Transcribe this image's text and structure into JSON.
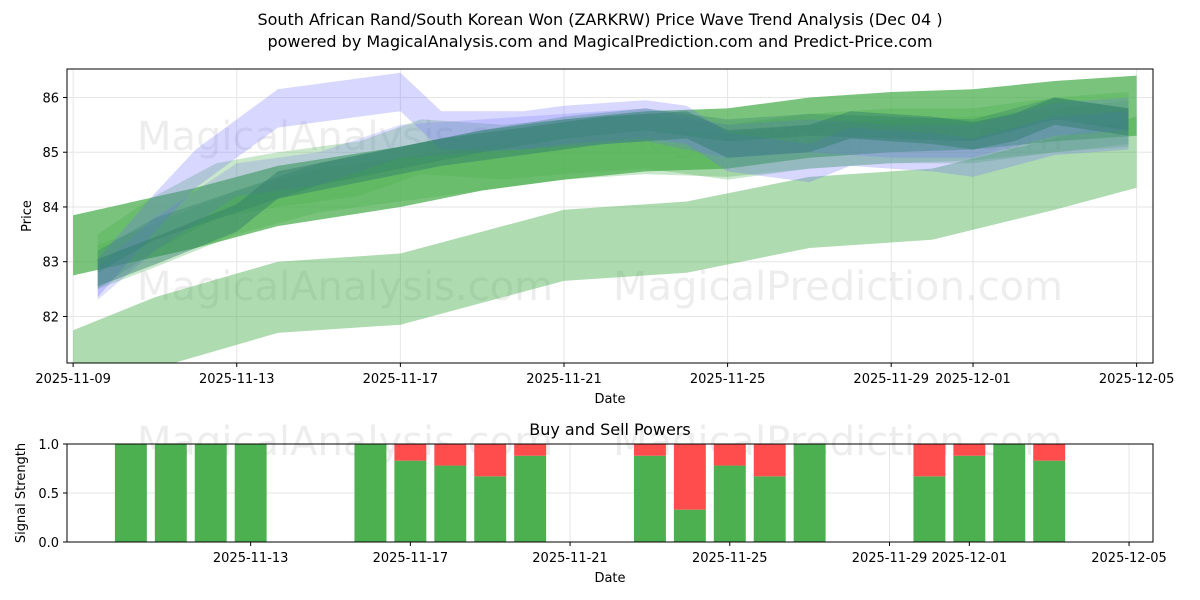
{
  "title_line1": "South African Rand/South Korean Won (ZARKRW) Price Wave Trend Analysis (Dec 04 )",
  "title_line2": "powered by MagicalAnalysis.com and MagicalPrediction.com and Predict-Price.com",
  "watermarks": [
    "MagicalAnalysis.com",
    "MagicalPrediction.com"
  ],
  "colors": {
    "green": "#4caf50",
    "blue": "#6f6fff",
    "red": "#ff4d4d",
    "teal": "#2e7d6a"
  },
  "chart_data": [
    {
      "type": "area",
      "title": "",
      "xlabel": "Date",
      "ylabel": "Price",
      "xlim_days": [
        -0.15,
        26.4
      ],
      "ylim": [
        81.15,
        86.52
      ],
      "x_ticks": [
        {
          "day": 0,
          "label": "2025-11-09"
        },
        {
          "day": 4,
          "label": "2025-11-13"
        },
        {
          "day": 8,
          "label": "2025-11-17"
        },
        {
          "day": 12,
          "label": "2025-11-21"
        },
        {
          "day": 16,
          "label": "2025-11-25"
        },
        {
          "day": 20,
          "label": "2025-11-29"
        },
        {
          "day": 22,
          "label": "2025-12-01"
        },
        {
          "day": 26,
          "label": "2025-12-05"
        }
      ],
      "y_ticks": [
        82,
        83,
        84,
        85,
        86
      ],
      "grid": true,
      "bands": [
        {
          "color": "green",
          "opacity": 0.45,
          "center": [
            [
              0,
              81.1
            ],
            [
              2,
              81.7
            ],
            [
              5,
              82.35
            ],
            [
              8,
              82.5
            ],
            [
              10,
              82.9
            ],
            [
              12,
              83.3
            ],
            [
              15,
              83.45
            ],
            [
              18,
              83.9
            ],
            [
              21,
              84.05
            ],
            [
              24,
              84.6
            ],
            [
              26,
              85.0
            ]
          ],
          "half": 0.65
        },
        {
          "color": "green",
          "opacity": 0.75,
          "center": [
            [
              0,
              83.3
            ],
            [
              3,
              83.8
            ],
            [
              5,
              84.2
            ],
            [
              8,
              84.55
            ],
            [
              10,
              84.85
            ],
            [
              12,
              85.05
            ],
            [
              14,
              85.2
            ],
            [
              16,
              85.25
            ],
            [
              18,
              85.45
            ],
            [
              20,
              85.55
            ],
            [
              22,
              85.6
            ],
            [
              24,
              85.75
            ],
            [
              26,
              85.85
            ]
          ],
          "half": 0.55
        },
        {
          "color": "green",
          "opacity": 0.3,
          "center": [
            [
              0.6,
              83.0
            ],
            [
              2,
              83.7
            ],
            [
              3.5,
              84.3
            ],
            [
              5,
              84.5
            ],
            [
              7,
              84.7
            ],
            [
              8.5,
              85.1
            ],
            [
              10.5,
              85.0
            ],
            [
              12,
              85.1
            ],
            [
              14,
              85.2
            ],
            [
              16,
              85.0
            ],
            [
              18,
              85.2
            ],
            [
              20,
              85.3
            ],
            [
              22,
              85.3
            ],
            [
              24,
              85.5
            ],
            [
              25.8,
              85.6
            ]
          ],
          "half": 0.5
        },
        {
          "color": "green",
          "opacity": 0.3,
          "center": [
            [
              0.6,
              82.9
            ],
            [
              2,
              83.3
            ],
            [
              4,
              83.9
            ],
            [
              6,
              84.3
            ],
            [
              8,
              84.5
            ],
            [
              10,
              84.7
            ],
            [
              12,
              84.9
            ],
            [
              14,
              85.0
            ],
            [
              16,
              84.95
            ],
            [
              18,
              85.1
            ],
            [
              20,
              85.2
            ],
            [
              22,
              85.25
            ],
            [
              24,
              85.4
            ],
            [
              25.8,
              85.55
            ]
          ],
          "half": 0.4
        },
        {
          "color": "blue",
          "opacity": 0.28,
          "center": [
            [
              0.6,
              82.7
            ],
            [
              2,
              83.9
            ],
            [
              3,
              84.7
            ],
            [
              5,
              85.8
            ],
            [
              8,
              86.1
            ],
            [
              9,
              85.4
            ],
            [
              11,
              85.4
            ],
            [
              12,
              85.5
            ],
            [
              14,
              85.6
            ],
            [
              15,
              85.5
            ],
            [
              16,
              85.0
            ],
            [
              18,
              84.8
            ],
            [
              19,
              85.1
            ],
            [
              21,
              85.0
            ],
            [
              22,
              84.9
            ],
            [
              24,
              85.3
            ],
            [
              25.8,
              85.4
            ]
          ],
          "half": 0.35
        },
        {
          "color": "blue",
          "opacity": 0.22,
          "center": [
            [
              0.6,
              82.6
            ],
            [
              2,
              83.5
            ],
            [
              4,
              84.5
            ],
            [
              6,
              84.7
            ],
            [
              8,
              85.2
            ],
            [
              10,
              85.3
            ],
            [
              12,
              85.4
            ],
            [
              14,
              85.5
            ],
            [
              16,
              85.2
            ],
            [
              18,
              85.3
            ],
            [
              20,
              85.2
            ],
            [
              22,
              85.2
            ],
            [
              24,
              85.6
            ],
            [
              25.8,
              85.7
            ]
          ],
          "half": 0.3
        },
        {
          "color": "teal",
          "opacity": 0.45,
          "center": [
            [
              0.6,
              82.8
            ],
            [
              2,
              83.2
            ],
            [
              4,
              83.8
            ],
            [
              5,
              84.4
            ],
            [
              7,
              84.7
            ],
            [
              9,
              85.0
            ],
            [
              11,
              85.2
            ],
            [
              13,
              85.4
            ],
            [
              15,
              85.5
            ],
            [
              16,
              85.15
            ],
            [
              18,
              85.25
            ],
            [
              19,
              85.5
            ],
            [
              21,
              85.4
            ],
            [
              22,
              85.3
            ],
            [
              23,
              85.45
            ],
            [
              24,
              85.75
            ],
            [
              25.8,
              85.55
            ]
          ],
          "half": 0.25
        },
        {
          "color": "teal",
          "opacity": 0.3,
          "center": [
            [
              0.6,
              83.0
            ],
            [
              2,
              83.6
            ],
            [
              4,
              84.1
            ],
            [
              6,
              84.6
            ],
            [
              8,
              84.9
            ],
            [
              10,
              85.2
            ],
            [
              12,
              85.45
            ],
            [
              14,
              85.6
            ],
            [
              16,
              85.4
            ],
            [
              18,
              85.5
            ],
            [
              20,
              85.45
            ],
            [
              22,
              85.4
            ],
            [
              24,
              85.8
            ],
            [
              25.8,
              85.6
            ]
          ],
          "half": 0.2
        }
      ]
    },
    {
      "type": "bar",
      "title": "Buy and Sell Powers",
      "xlabel": "Date",
      "ylabel": "Signal Strength",
      "xlim_days": [
        -0.6,
        26.6
      ],
      "ylim": [
        0,
        1
      ],
      "x_ticks": [
        {
          "day": 4,
          "label": "2025-11-13"
        },
        {
          "day": 8,
          "label": "2025-11-17"
        },
        {
          "day": 12,
          "label": "2025-11-21"
        },
        {
          "day": 16,
          "label": "2025-11-25"
        },
        {
          "day": 20,
          "label": "2025-11-29"
        },
        {
          "day": 22,
          "label": "2025-12-01"
        },
        {
          "day": 26,
          "label": "2025-12-05"
        }
      ],
      "y_ticks": [
        0.0,
        0.5,
        1.0
      ],
      "y_tick_labels": [
        "0.0",
        "0.5",
        "1.0"
      ],
      "grid": true,
      "series": [
        {
          "name": "Buy",
          "color": "green"
        },
        {
          "name": "Sell",
          "color": "red"
        }
      ],
      "bars": [
        {
          "day": 1,
          "buy": 1.0
        },
        {
          "day": 2,
          "buy": 1.0
        },
        {
          "day": 3,
          "buy": 1.0
        },
        {
          "day": 4,
          "buy": 1.0
        },
        {
          "day": 7,
          "buy": 1.0
        },
        {
          "day": 8,
          "buy": 0.83
        },
        {
          "day": 9,
          "buy": 0.78
        },
        {
          "day": 10,
          "buy": 0.67
        },
        {
          "day": 11,
          "buy": 0.88
        },
        {
          "day": 14,
          "buy": 0.88
        },
        {
          "day": 15,
          "buy": 0.33
        },
        {
          "day": 16,
          "buy": 0.78
        },
        {
          "day": 17,
          "buy": 0.67
        },
        {
          "day": 18,
          "buy": 1.0
        },
        {
          "day": 21,
          "buy": 0.67
        },
        {
          "day": 22,
          "buy": 0.88
        },
        {
          "day": 23,
          "buy": 1.0
        },
        {
          "day": 24,
          "buy": 0.83
        }
      ]
    }
  ]
}
